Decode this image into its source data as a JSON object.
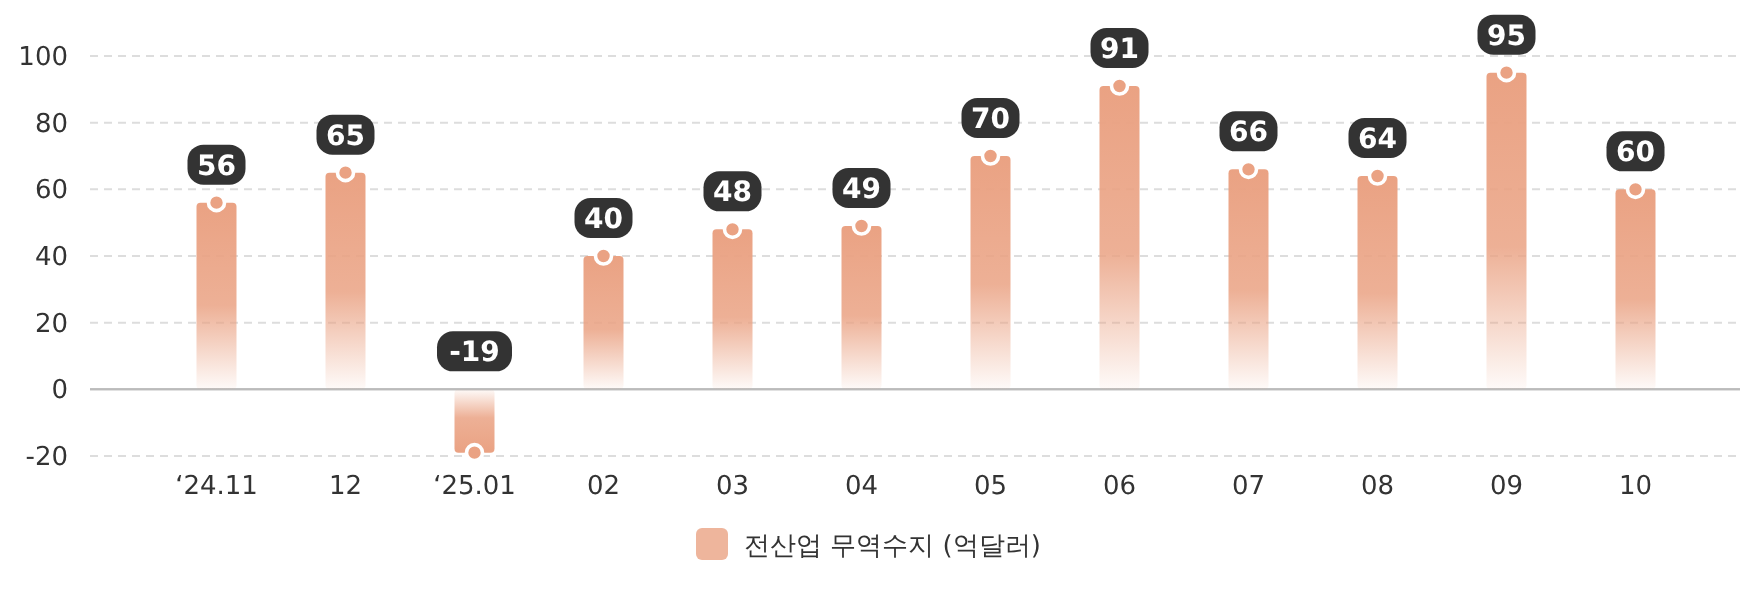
{
  "chart_data": {
    "type": "bar",
    "categories": [
      "‘24.11",
      "12",
      "‘25.01",
      "02",
      "03",
      "04",
      "05",
      "06",
      "07",
      "08",
      "09",
      "10"
    ],
    "series": [
      {
        "name": "전산업 무역수지 (억달러)",
        "color": "#eaa283",
        "values": [
          56,
          65,
          -19,
          40,
          48,
          49,
          70,
          91,
          66,
          64,
          95,
          60
        ],
        "value_labels": [
          "56",
          "65",
          "-19",
          "40",
          "48",
          "49",
          "70",
          "91",
          "66",
          "64",
          "95",
          "60"
        ]
      },
      {
        "type": "scatter",
        "color": "#eaa283",
        "values": [
          56,
          65,
          -19,
          40,
          48,
          49,
          70,
          91,
          66,
          64,
          95,
          60
        ]
      }
    ],
    "ylim": [
      -20,
      100
    ],
    "yticks": [
      -20,
      0,
      20,
      40,
      60,
      80,
      100
    ],
    "grid": "y",
    "legend": "bottom",
    "marker": "circle"
  }
}
